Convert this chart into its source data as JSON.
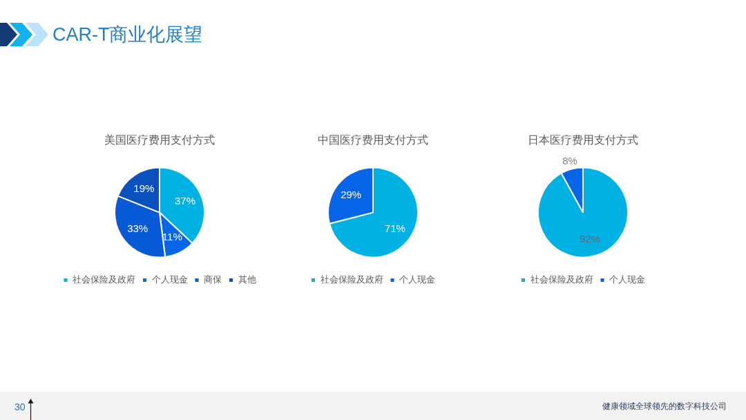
{
  "chart_data": [
    {
      "type": "other",
      "title": "CAR-T商业化展望",
      "annotations": [
        "30",
        "健康领域全球领先的数字科技公司"
      ]
    },
    {
      "type": "pie",
      "title": "美国医疗费用支付方式",
      "categories": [
        "社会保险及政府",
        "个人现金",
        "商保",
        "其他"
      ],
      "values": [
        37,
        11,
        33,
        19
      ],
      "colors": [
        "#00b2e3",
        "#0765e8",
        "#085ad6",
        "#0a51c0"
      ],
      "value_labels": [
        "37%",
        "11%",
        "33%",
        "19%"
      ],
      "legend": "bottom"
    },
    {
      "type": "pie",
      "title": "中国医疗费用支付方式",
      "categories": [
        "社会保险及政府",
        "个人现金"
      ],
      "values": [
        71,
        29
      ],
      "colors": [
        "#00b2e3",
        "#0765e8"
      ],
      "value_labels": [
        "71%",
        "29%"
      ],
      "legend": "bottom"
    },
    {
      "type": "pie",
      "title": "日本医疗费用支付方式",
      "categories": [
        "社会保险及政府",
        "个人现金"
      ],
      "values": [
        92,
        8
      ],
      "colors": [
        "#00b2e3",
        "#0765e8"
      ],
      "value_labels": [
        "92%",
        "8%"
      ],
      "legend": "bottom"
    }
  ]
}
